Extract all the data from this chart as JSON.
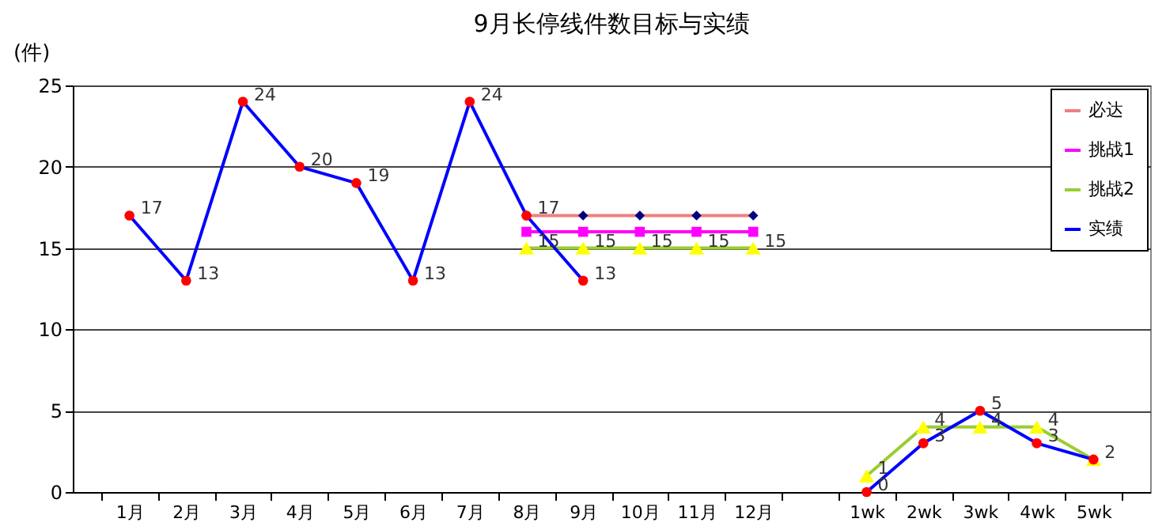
{
  "chart_data": {
    "type": "line",
    "title": "9月长停线件数目标与实绩",
    "ylabel": "(件)",
    "categories": [
      "1月",
      "2月",
      "3月",
      "4月",
      "5月",
      "6月",
      "7月",
      "8月",
      "9月",
      "10月",
      "11月",
      "12月",
      null,
      "1wk",
      "2wk",
      "3wk",
      "4wk",
      "5wk"
    ],
    "ylim": [
      0,
      25
    ],
    "yticks": [
      0,
      5,
      10,
      15,
      20,
      25
    ],
    "grid": "y",
    "legend": "top right",
    "line_style": "solid",
    "series": [
      {
        "name": "必达",
        "color": "#f08080",
        "marker": "diamond",
        "colors": [
          null,
          null,
          null,
          null,
          null,
          null,
          null,
          "#000080",
          "#000080",
          "#000080",
          "#000080",
          "#000080",
          null,
          null,
          null,
          null,
          null,
          null
        ],
        "values": [
          null,
          null,
          null,
          null,
          null,
          null,
          null,
          17,
          17,
          17,
          17,
          17,
          null,
          null,
          null,
          null,
          null,
          null
        ]
      },
      {
        "name": "挑战1",
        "color": "#ff00ff",
        "marker": "square",
        "colors": [
          null,
          null,
          null,
          null,
          null,
          null,
          null,
          "#ff00ff",
          "#ff00ff",
          "#ff00ff",
          "#ff00ff",
          "#ff00ff",
          null,
          null,
          null,
          null,
          null,
          null
        ],
        "values": [
          null,
          null,
          null,
          null,
          null,
          null,
          null,
          16,
          16,
          16,
          16,
          16,
          null,
          null,
          null,
          null,
          null,
          null
        ]
      },
      {
        "name": "挑战2",
        "color": "#9acd32",
        "marker": "triangle",
        "colors": [
          null,
          null,
          null,
          null,
          null,
          null,
          null,
          "#ffff00",
          "#ffff00",
          "#ffff00",
          "#ffff00",
          "#ffff00",
          null,
          "#ffff00",
          "#ffff00",
          "#ffff00",
          "#ffff00",
          "#ffff00"
        ],
        "values": [
          null,
          null,
          null,
          null,
          null,
          null,
          null,
          15,
          15,
          15,
          15,
          15,
          null,
          1,
          4,
          4,
          4,
          2
        ],
        "value_labels": [
          null,
          null,
          null,
          null,
          null,
          null,
          null,
          "15",
          "15",
          "15",
          "15",
          "15",
          null,
          "1",
          "4",
          "4",
          "4",
          null
        ]
      },
      {
        "name": "实绩",
        "color": "#0000ff",
        "marker": "circle",
        "colors": [
          "#ff0000",
          "#ff0000",
          "#ff0000",
          "#ff0000",
          "#ff0000",
          "#ff0000",
          "#ff0000",
          "#ff0000",
          "#ff0000",
          null,
          null,
          null,
          null,
          "#ff0000",
          "#ff0000",
          "#ff0000",
          "#ff0000",
          "#ff0000"
        ],
        "values": [
          17,
          13,
          24,
          20,
          19,
          13,
          24,
          17,
          13,
          null,
          null,
          null,
          null,
          0,
          3,
          5,
          3,
          2
        ],
        "value_labels": [
          "17",
          "13",
          "24",
          "20",
          "19",
          "13",
          "24",
          "17",
          "13",
          null,
          null,
          null,
          null,
          "0",
          "3",
          "5",
          "3",
          "2"
        ]
      }
    ]
  }
}
